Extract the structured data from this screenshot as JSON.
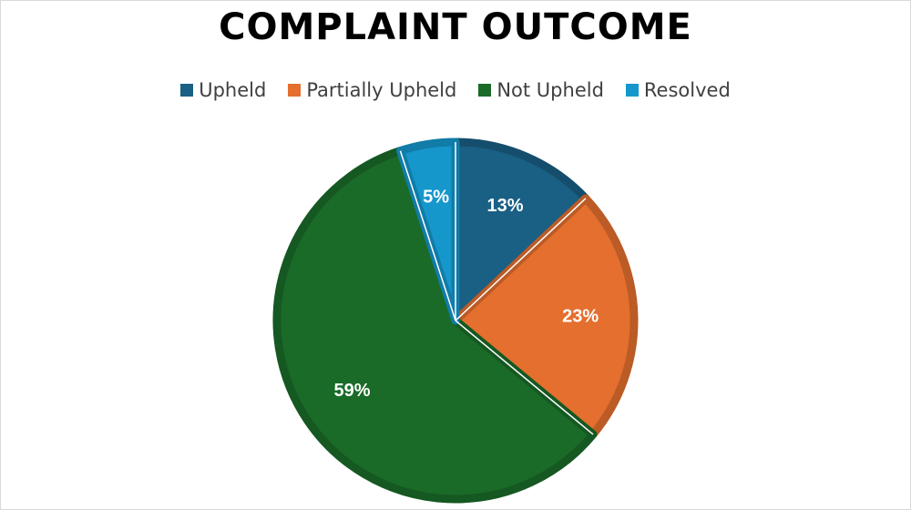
{
  "chart_data": {
    "type": "pie",
    "title": "COMPLAINT OUTCOME",
    "legend_position": "top",
    "slices": [
      {
        "name": "Upheld",
        "value": 13,
        "label": "13%",
        "color": "#1a5f84"
      },
      {
        "name": "Partially Upheld",
        "value": 23,
        "label": "23%",
        "color": "#e46f2e"
      },
      {
        "name": "Not Upheld",
        "value": 59,
        "label": "59%",
        "color": "#1a6b28"
      },
      {
        "name": "Resolved",
        "value": 5,
        "label": "5%",
        "color": "#1597cc"
      }
    ]
  }
}
